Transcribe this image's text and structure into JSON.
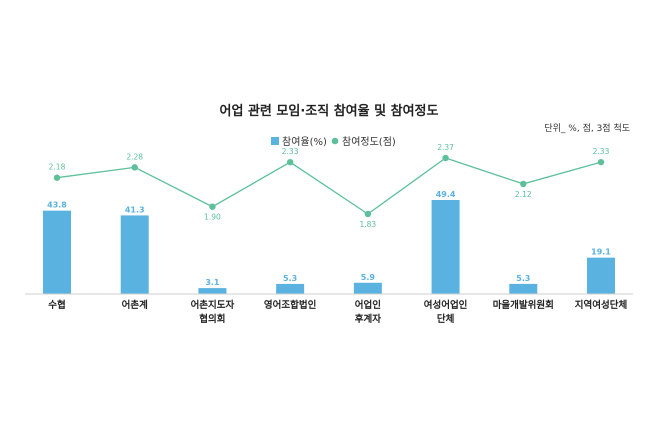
{
  "chart_data": {
    "type": "bar",
    "title": "어업 관련 모임·조직 참여율 및 참여정도",
    "unit_note": "단위_ %, 점, 3점 척도",
    "categories": [
      [
        "수협"
      ],
      [
        "어촌계"
      ],
      [
        "어촌지도자",
        "협의회"
      ],
      [
        "영어조합법인"
      ],
      [
        "어업인",
        "후계자"
      ],
      [
        "여성어업인",
        "단체"
      ],
      [
        "마을개발위원회"
      ],
      [
        "지역여성단체"
      ]
    ],
    "series": [
      {
        "name": "참여율(%)",
        "type": "bar",
        "values": [
          43.8,
          41.3,
          3.1,
          5.3,
          5.9,
          49.4,
          5.3,
          19.1
        ],
        "labels": [
          "43.8",
          "41.3",
          "3.1",
          "5.3",
          "5.9",
          "49.4",
          "5.3",
          "19.1"
        ],
        "color": "#5ab2e0"
      },
      {
        "name": "참여정도(점)",
        "type": "line",
        "values": [
          2.18,
          2.28,
          1.9,
          2.33,
          1.83,
          2.37,
          2.12,
          2.33
        ],
        "labels": [
          "2.18",
          "2.28",
          "1.90",
          "2.33",
          "1.83",
          "2.37",
          "2.12",
          "2.33"
        ],
        "color": "#5dc09a"
      }
    ],
    "legend": "top-center",
    "grid": false
  }
}
